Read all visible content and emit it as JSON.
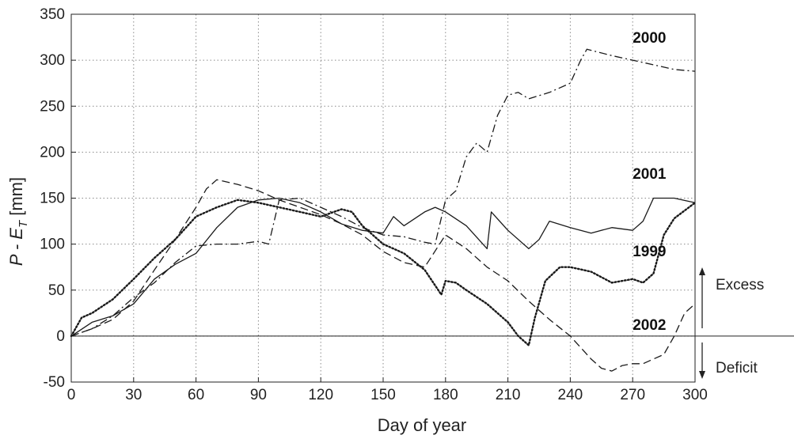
{
  "chart_data": {
    "type": "line",
    "title": "",
    "xlabel": "Day of year",
    "ylabel": {
      "main": "P - E",
      "sub": "T",
      "unit": " [mm]"
    },
    "xlim": [
      0,
      300
    ],
    "ylim": [
      -50,
      350
    ],
    "xticks": [
      0,
      30,
      60,
      90,
      120,
      150,
      180,
      210,
      240,
      270,
      300
    ],
    "yticks": [
      -50,
      0,
      50,
      100,
      150,
      200,
      250,
      300,
      350
    ],
    "grid": true,
    "series": [
      {
        "name": "2000",
        "style": "dashdot",
        "x": [
          0,
          10,
          20,
          30,
          40,
          50,
          60,
          70,
          80,
          90,
          95,
          100,
          110,
          120,
          130,
          140,
          150,
          160,
          170,
          175,
          180,
          185,
          190,
          195,
          200,
          205,
          210,
          215,
          220,
          230,
          240,
          245,
          248,
          260,
          270,
          280,
          290,
          300
        ],
        "y": [
          0,
          8,
          22,
          42,
          58,
          80,
          98,
          100,
          100,
          103,
          100,
          148,
          150,
          140,
          130,
          118,
          110,
          108,
          102,
          100,
          148,
          158,
          195,
          210,
          200,
          240,
          262,
          265,
          258,
          265,
          275,
          300,
          312,
          305,
          300,
          295,
          290,
          288
        ]
      },
      {
        "name": "2001",
        "style": "solid",
        "x": [
          0,
          10,
          20,
          30,
          40,
          50,
          60,
          70,
          80,
          90,
          100,
          110,
          120,
          130,
          140,
          150,
          155,
          160,
          170,
          175,
          180,
          190,
          200,
          202,
          210,
          220,
          225,
          230,
          240,
          250,
          260,
          270,
          275,
          280,
          290,
          300
        ],
        "y": [
          0,
          15,
          22,
          35,
          62,
          78,
          90,
          118,
          140,
          148,
          150,
          145,
          135,
          122,
          115,
          112,
          130,
          120,
          135,
          140,
          135,
          120,
          95,
          135,
          115,
          95,
          105,
          125,
          118,
          112,
          118,
          115,
          125,
          150,
          150,
          145
        ]
      },
      {
        "name": "1999",
        "style": "dotted",
        "x": [
          0,
          5,
          10,
          20,
          30,
          40,
          50,
          60,
          70,
          80,
          90,
          100,
          110,
          120,
          130,
          135,
          140,
          150,
          155,
          160,
          170,
          175,
          178,
          180,
          185,
          190,
          200,
          210,
          215,
          220,
          223,
          228,
          235,
          240,
          250,
          260,
          270,
          275,
          280,
          285,
          290,
          300
        ],
        "y": [
          0,
          20,
          25,
          40,
          62,
          85,
          105,
          130,
          140,
          148,
          145,
          140,
          135,
          130,
          138,
          135,
          120,
          100,
          95,
          90,
          72,
          55,
          45,
          60,
          58,
          50,
          35,
          15,
          0,
          -10,
          20,
          60,
          75,
          75,
          70,
          58,
          62,
          58,
          68,
          110,
          128,
          145
        ]
      },
      {
        "name": "2002",
        "style": "dashed",
        "x": [
          0,
          10,
          20,
          30,
          40,
          50,
          60,
          65,
          70,
          80,
          90,
          100,
          110,
          120,
          130,
          140,
          150,
          160,
          170,
          180,
          190,
          200,
          210,
          220,
          230,
          240,
          250,
          255,
          260,
          265,
          270,
          275,
          280,
          285,
          290,
          295,
          300
        ],
        "y": [
          0,
          8,
          18,
          38,
          72,
          105,
          140,
          160,
          170,
          165,
          158,
          148,
          140,
          132,
          122,
          110,
          92,
          80,
          75,
          110,
          95,
          75,
          60,
          38,
          18,
          0,
          -25,
          -35,
          -38,
          -32,
          -30,
          -30,
          -25,
          -20,
          0,
          25,
          35
        ]
      }
    ],
    "labels": [
      {
        "text": "2000",
        "x": 270,
        "y": 325
      },
      {
        "text": "2001",
        "x": 270,
        "y": 177
      },
      {
        "text": "1999",
        "x": 270,
        "y": 93
      },
      {
        "text": "2002",
        "x": 270,
        "y": 13
      }
    ],
    "annotations": {
      "excess": "Excess",
      "deficit": "Deficit"
    }
  }
}
